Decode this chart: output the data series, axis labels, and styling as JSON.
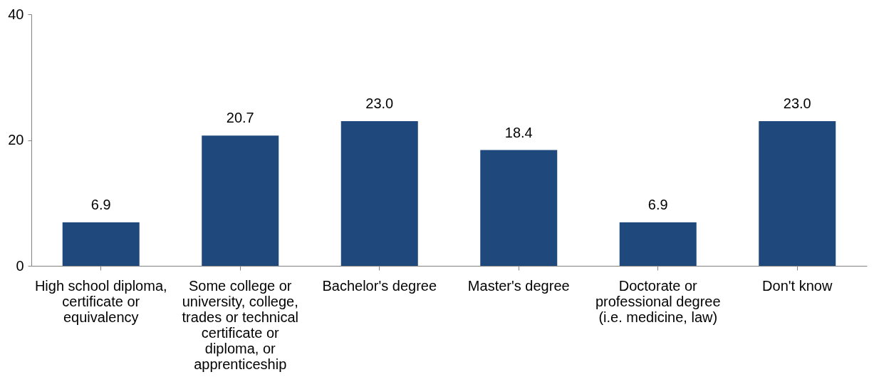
{
  "chart_data": {
    "type": "bar",
    "categories": [
      "High school diploma, certificate or equivalency",
      "Some college or university, college, trades or technical certificate or diploma, or apprenticeship",
      "Bachelor's degree",
      "Master's degree",
      "Doctorate or professional degree (i.e. medicine, law)",
      "Don't know"
    ],
    "values": [
      6.9,
      20.7,
      23.0,
      18.4,
      6.9,
      23.0
    ],
    "value_labels": [
      "6.9",
      "20.7",
      "23.0",
      "18.4",
      "6.9",
      "23.0"
    ],
    "color": "#1f497d",
    "ylim": [
      0,
      40
    ],
    "yticks": [
      0,
      20,
      40
    ],
    "grid": false
  }
}
